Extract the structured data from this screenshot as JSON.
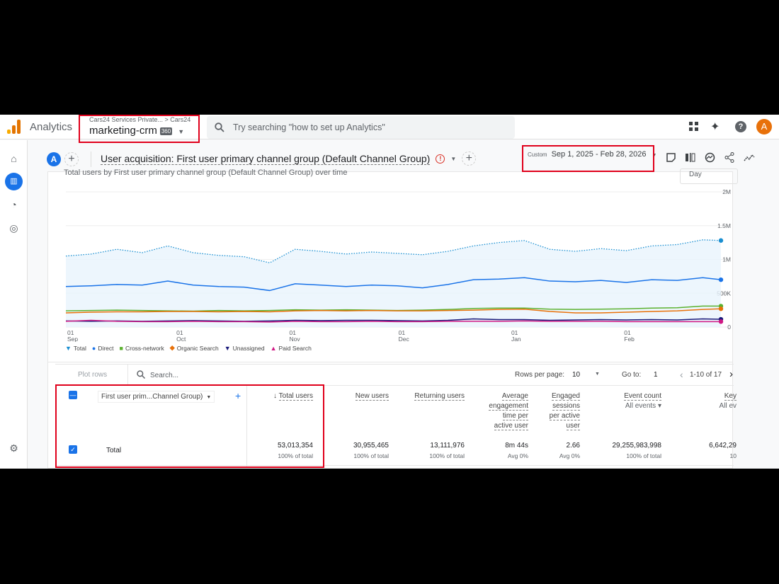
{
  "header": {
    "app_name": "Analytics",
    "breadcrumb": "Cars24 Services Private... > Cars24",
    "property": "marketing-crm",
    "property_badge": "360",
    "search_placeholder": "Try searching \"how to set up Analytics\"",
    "avatar_letter": "A"
  },
  "toolbar": {
    "segment_letter": "A",
    "report_title": "User acquisition: First user primary channel group (Default Channel Group)",
    "date_label": "Custom",
    "date_range": "Sep 1, 2025 - Feb 28, 2026"
  },
  "chart_card": {
    "title": "Total users by First user primary channel group (Default Channel Group) over time",
    "granularity": "Day"
  },
  "chart_data": {
    "type": "line",
    "x": [
      "2025-09-01",
      "2025-09-08",
      "2025-09-15",
      "2025-09-22",
      "2025-09-29",
      "2025-10-06",
      "2025-10-13",
      "2025-10-20",
      "2025-10-27",
      "2025-11-03",
      "2025-11-10",
      "2025-11-17",
      "2025-11-24",
      "2025-12-01",
      "2025-12-08",
      "2025-12-15",
      "2025-12-22",
      "2025-12-29",
      "2026-01-05",
      "2026-01-12",
      "2026-01-19",
      "2026-01-26",
      "2026-02-02",
      "2026-02-09",
      "2026-02-16",
      "2026-02-23",
      "2026-02-28"
    ],
    "x_ticks": [
      {
        "day": "01",
        "month": "Sep",
        "date": "2025-09-01"
      },
      {
        "day": "01",
        "month": "Oct",
        "date": "2025-10-01"
      },
      {
        "day": "01",
        "month": "Nov",
        "date": "2025-11-01"
      },
      {
        "day": "01",
        "month": "Dec",
        "date": "2025-12-01"
      },
      {
        "day": "01",
        "month": "Jan",
        "date": "2026-01-01"
      },
      {
        "day": "01",
        "month": "Feb",
        "date": "2026-02-01"
      }
    ],
    "y_ticks": [
      {
        "v": 0,
        "label": "0"
      },
      {
        "v": 500000,
        "label": "500K"
      },
      {
        "v": 1000000,
        "label": "1M"
      },
      {
        "v": 1500000,
        "label": "1.5M"
      },
      {
        "v": 2000000,
        "label": "2M"
      }
    ],
    "ylim": [
      0,
      2000000
    ],
    "grid": true,
    "legend_position": "bottom-left",
    "series": [
      {
        "name": "Total",
        "color": "#1a8fd1",
        "marker": "pin",
        "values": [
          1050000,
          1080000,
          1150000,
          1100000,
          1200000,
          1100000,
          1060000,
          1040000,
          950000,
          1150000,
          1120000,
          1080000,
          1110000,
          1090000,
          1070000,
          1120000,
          1200000,
          1250000,
          1280000,
          1150000,
          1120000,
          1160000,
          1130000,
          1200000,
          1220000,
          1290000,
          1280000
        ]
      },
      {
        "name": "Direct",
        "color": "#1a73e8",
        "marker": "circle",
        "values": [
          600000,
          610000,
          630000,
          620000,
          680000,
          620000,
          600000,
          590000,
          540000,
          640000,
          620000,
          600000,
          620000,
          610000,
          580000,
          630000,
          700000,
          710000,
          730000,
          680000,
          670000,
          690000,
          660000,
          700000,
          690000,
          730000,
          700000
        ]
      },
      {
        "name": "Cross-network",
        "color": "#5bb12f",
        "marker": "square",
        "values": [
          240000,
          245000,
          250000,
          245000,
          240000,
          235000,
          245000,
          240000,
          245000,
          255000,
          250000,
          255000,
          250000,
          245000,
          250000,
          260000,
          275000,
          280000,
          280000,
          265000,
          260000,
          265000,
          270000,
          280000,
          285000,
          310000,
          310000
        ]
      },
      {
        "name": "Organic Search",
        "color": "#e8710a",
        "marker": "diamond",
        "values": [
          210000,
          220000,
          225000,
          225000,
          230000,
          230000,
          225000,
          230000,
          225000,
          240000,
          245000,
          240000,
          245000,
          240000,
          240000,
          245000,
          250000,
          260000,
          265000,
          230000,
          210000,
          210000,
          220000,
          230000,
          240000,
          260000,
          270000
        ]
      },
      {
        "name": "Unassigned",
        "color": "#1a1a7a",
        "marker": "triangle-down",
        "values": [
          90000,
          85000,
          90000,
          85000,
          90000,
          95000,
          90000,
          85000,
          90000,
          100000,
          95000,
          100000,
          100000,
          95000,
          90000,
          100000,
          120000,
          110000,
          110000,
          100000,
          105000,
          110000,
          105000,
          110000,
          105000,
          120000,
          115000
        ]
      },
      {
        "name": "Paid Search",
        "color": "#d01884",
        "marker": "triangle-up",
        "values": [
          85000,
          100000,
          85000,
          80000,
          80000,
          85000,
          80000,
          80000,
          75000,
          85000,
          80000,
          80000,
          85000,
          80000,
          80000,
          85000,
          85000,
          85000,
          90000,
          85000,
          85000,
          85000,
          80000,
          80000,
          80000,
          80000,
          80000
        ]
      }
    ]
  },
  "table": {
    "plot_rows": "Plot rows",
    "search_placeholder": "Search...",
    "rows_per_page_label": "Rows per page:",
    "rows_per_page": "10",
    "goto_label": "Go to:",
    "goto_value": "1",
    "page_range": "1-10 of 17",
    "dimension": "First user prim...Channel Group)",
    "columns": [
      {
        "label": "Total users",
        "sort": "desc"
      },
      {
        "label": "New users"
      },
      {
        "label": "Returning users"
      },
      {
        "label": "Average engagement time per active user"
      },
      {
        "label": "Engaged sessions per active user"
      },
      {
        "label": "Event count",
        "sub": "All events"
      },
      {
        "label": "Key",
        "sub": "All ev"
      }
    ],
    "total_row": {
      "label": "Total",
      "values": [
        "53,013,354",
        "30,955,465",
        "13,111,976",
        "8m 44s",
        "2.66",
        "29,255,983,998",
        "6,642,29"
      ],
      "subs": [
        "100% of total",
        "100% of total",
        "100% of total",
        "Avg 0%",
        "Avg 0%",
        "100% of total",
        "10"
      ]
    }
  }
}
